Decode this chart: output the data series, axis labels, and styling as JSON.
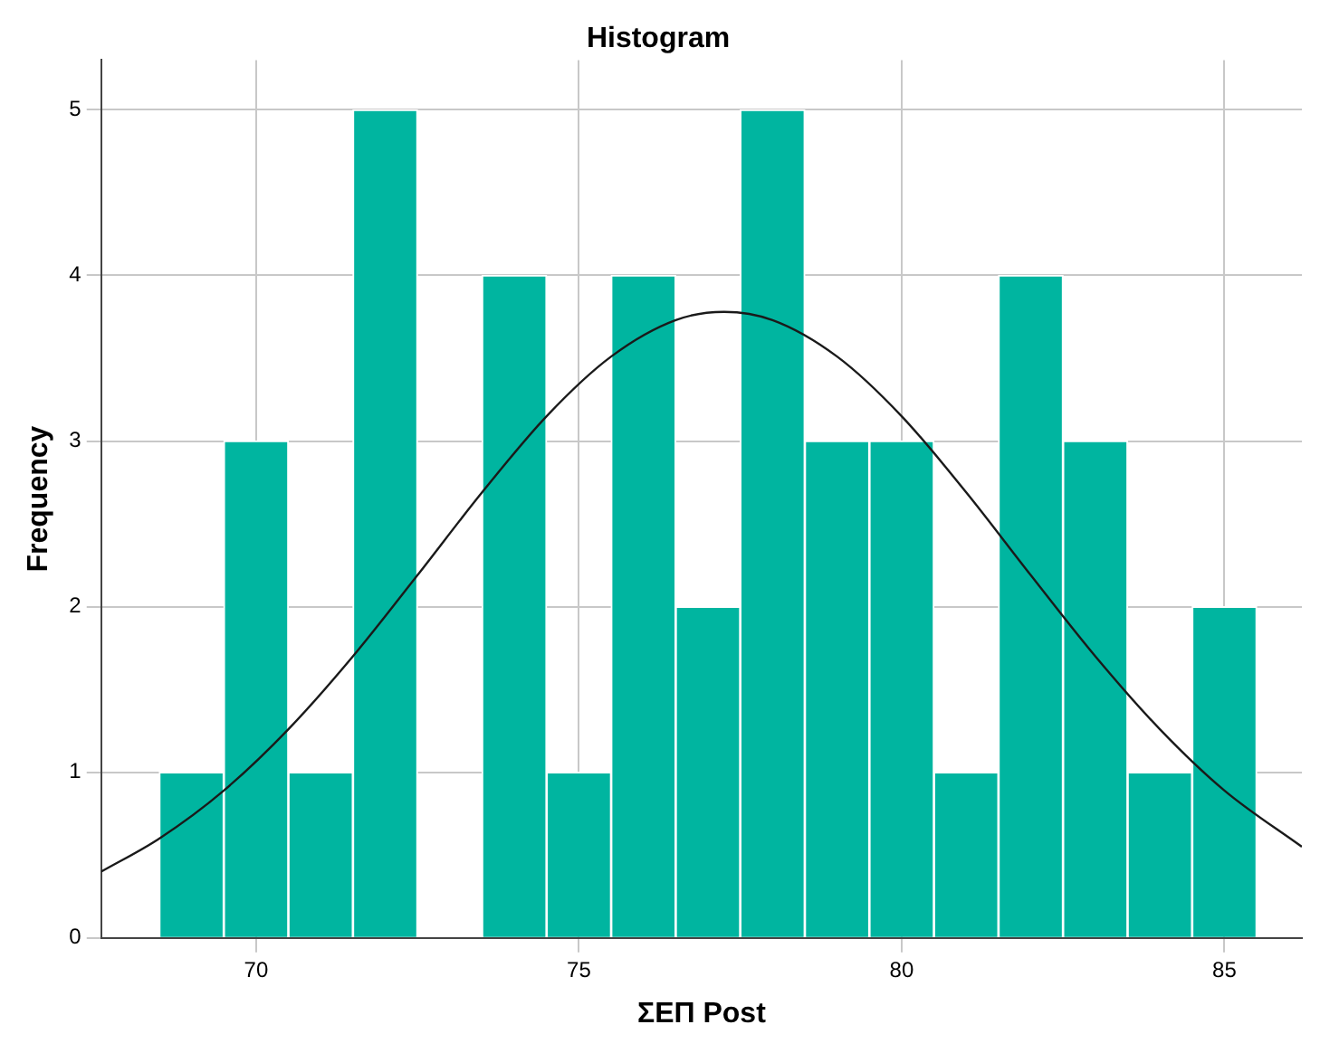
{
  "chart_data": {
    "type": "histogram",
    "title": "Histogram",
    "xlabel": "ΣΕΠ Post",
    "ylabel": "Frequency",
    "bins": [
      68.5,
      69.5,
      70.5,
      71.5,
      72.5,
      73.5,
      74.5,
      75.5,
      76.5,
      77.5,
      78.5,
      79.5,
      80.5,
      81.5,
      82.5,
      83.5,
      84.5,
      85.5
    ],
    "series": [
      {
        "color": "#00b5a0",
        "values": [
          1,
          3,
          1,
          5,
          0,
          4,
          1,
          4,
          2,
          5,
          3,
          3,
          1,
          4,
          3,
          1,
          2
        ]
      },
      {
        "type": "line",
        "color": "#1a1a1a",
        "x": [
          67.6,
          68.5,
          69.5,
          70.5,
          71.5,
          72.5,
          73.5,
          74.5,
          75.5,
          76.5,
          77.25,
          78,
          79,
          80,
          81,
          82,
          83,
          84,
          85,
          86.2
        ],
        "values": [
          0.4,
          0.6,
          0.89,
          1.26,
          1.7,
          2.19,
          2.69,
          3.15,
          3.51,
          3.73,
          3.78,
          3.73,
          3.51,
          3.15,
          2.69,
          2.19,
          1.7,
          1.26,
          0.89,
          0.55
        ]
      }
    ],
    "xlim": [
      67.6,
      86.2
    ],
    "xticks": [
      70,
      75,
      80,
      85
    ],
    "ylim": [
      0,
      5.3
    ],
    "yticks": [
      0,
      1,
      2,
      3,
      4,
      5
    ],
    "grid": true,
    "legend": false,
    "marker": "none",
    "line_style": "solid"
  }
}
